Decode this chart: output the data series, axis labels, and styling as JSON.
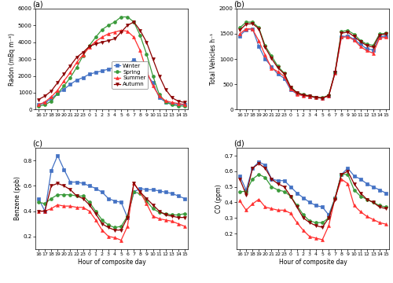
{
  "hours_labels": [
    "16",
    "17",
    "18",
    "19",
    "20",
    "21",
    "22",
    "23",
    "0",
    "1",
    "2",
    "3",
    "4",
    "5",
    "6",
    "7",
    "8",
    "9",
    "10",
    "11",
    "12",
    "13",
    "14",
    "15"
  ],
  "radon": {
    "Winter": [
      280,
      380,
      650,
      950,
      1200,
      1500,
      1750,
      1900,
      2100,
      2200,
      2300,
      2400,
      2500,
      2600,
      2700,
      2950,
      2700,
      2100,
      1600,
      700,
      450,
      350,
      300,
      280
    ],
    "Spring": [
      200,
      280,
      500,
      950,
      1400,
      1900,
      2500,
      3200,
      3800,
      4300,
      4750,
      5000,
      5200,
      5500,
      5500,
      5200,
      4400,
      3300,
      2000,
      900,
      450,
      280,
      220,
      200
    ],
    "Summer": [
      280,
      450,
      750,
      1150,
      1700,
      2200,
      2800,
      3250,
      3700,
      4050,
      4300,
      4500,
      4600,
      4700,
      4650,
      4300,
      3500,
      2300,
      1400,
      800,
      520,
      420,
      360,
      300
    ],
    "Autumn": [
      600,
      800,
      1100,
      1600,
      2100,
      2600,
      3100,
      3400,
      3750,
      3900,
      4000,
      4100,
      4200,
      4600,
      5000,
      5200,
      4700,
      4000,
      3000,
      2000,
      1200,
      700,
      500,
      420
    ]
  },
  "traffic": {
    "Winter": [
      1460,
      1580,
      1600,
      1250,
      1000,
      850,
      700,
      620,
      390,
      310,
      280,
      260,
      235,
      230,
      270,
      730,
      1440,
      1460,
      1390,
      1290,
      1200,
      1180,
      1430,
      1460
    ],
    "Spring": [
      1620,
      1730,
      1730,
      1620,
      1260,
      1060,
      855,
      720,
      445,
      340,
      295,
      275,
      245,
      235,
      285,
      740,
      1545,
      1565,
      1490,
      1365,
      1295,
      1270,
      1495,
      1510
    ],
    "Summer": [
      1500,
      1600,
      1590,
      1360,
      1075,
      820,
      750,
      655,
      415,
      308,
      270,
      260,
      238,
      228,
      268,
      728,
      1430,
      1440,
      1375,
      1245,
      1165,
      1115,
      1415,
      1430
    ],
    "Autumn": [
      1570,
      1690,
      1700,
      1600,
      1230,
      1010,
      825,
      705,
      440,
      330,
      288,
      268,
      238,
      228,
      278,
      738,
      1510,
      1535,
      1445,
      1345,
      1265,
      1235,
      1475,
      1495
    ]
  },
  "benzene": {
    "Winter": [
      0.5,
      0.4,
      0.72,
      0.84,
      0.73,
      0.63,
      0.63,
      0.62,
      0.6,
      0.58,
      0.55,
      0.5,
      0.48,
      0.47,
      0.35,
      0.55,
      0.58,
      0.57,
      0.57,
      0.56,
      0.55,
      0.54,
      0.52,
      0.5
    ],
    "Spring": [
      0.47,
      0.46,
      0.5,
      0.53,
      0.53,
      0.53,
      0.52,
      0.52,
      0.47,
      0.4,
      0.33,
      0.29,
      0.27,
      0.28,
      0.36,
      0.55,
      0.54,
      0.48,
      0.42,
      0.39,
      0.38,
      0.37,
      0.37,
      0.38
    ],
    "Summer": [
      0.4,
      0.4,
      0.42,
      0.45,
      0.44,
      0.44,
      0.43,
      0.43,
      0.4,
      0.33,
      0.25,
      0.2,
      0.19,
      0.17,
      0.28,
      0.62,
      0.55,
      0.46,
      0.36,
      0.34,
      0.33,
      0.32,
      0.3,
      0.28
    ],
    "Autumn": [
      0.4,
      0.4,
      0.6,
      0.62,
      0.6,
      0.57,
      0.52,
      0.5,
      0.45,
      0.38,
      0.3,
      0.27,
      0.25,
      0.25,
      0.35,
      0.62,
      0.55,
      0.5,
      0.45,
      0.4,
      0.37,
      0.36,
      0.35,
      0.35
    ]
  },
  "co": {
    "Winter": [
      0.57,
      0.48,
      0.62,
      0.66,
      0.64,
      0.55,
      0.54,
      0.54,
      0.5,
      0.46,
      0.43,
      0.4,
      0.38,
      0.37,
      0.32,
      0.43,
      0.58,
      0.62,
      0.57,
      0.55,
      0.52,
      0.5,
      0.48,
      0.46
    ],
    "Spring": [
      0.47,
      0.47,
      0.55,
      0.58,
      0.56,
      0.5,
      0.48,
      0.47,
      0.44,
      0.38,
      0.32,
      0.28,
      0.27,
      0.27,
      0.3,
      0.43,
      0.58,
      0.58,
      0.48,
      0.44,
      0.42,
      0.4,
      0.38,
      0.37
    ],
    "Summer": [
      0.41,
      0.35,
      0.39,
      0.42,
      0.37,
      0.36,
      0.35,
      0.35,
      0.33,
      0.27,
      0.22,
      0.18,
      0.17,
      0.16,
      0.25,
      0.43,
      0.55,
      0.52,
      0.38,
      0.34,
      0.31,
      0.29,
      0.27,
      0.26
    ],
    "Autumn": [
      0.55,
      0.45,
      0.62,
      0.65,
      0.62,
      0.55,
      0.52,
      0.5,
      0.44,
      0.37,
      0.3,
      0.27,
      0.25,
      0.24,
      0.3,
      0.42,
      0.58,
      0.6,
      0.52,
      0.46,
      0.42,
      0.4,
      0.37,
      0.36
    ]
  },
  "seasons": [
    "Winter",
    "Spring",
    "Summer",
    "Autumn"
  ],
  "colors": {
    "Winter": "#4472C4",
    "Spring": "#3A9A3A",
    "Summer": "#FF3030",
    "Autumn": "#8B0000"
  },
  "markers": {
    "Winter": "s",
    "Spring": "o",
    "Summer": "^",
    "Autumn": "v"
  }
}
